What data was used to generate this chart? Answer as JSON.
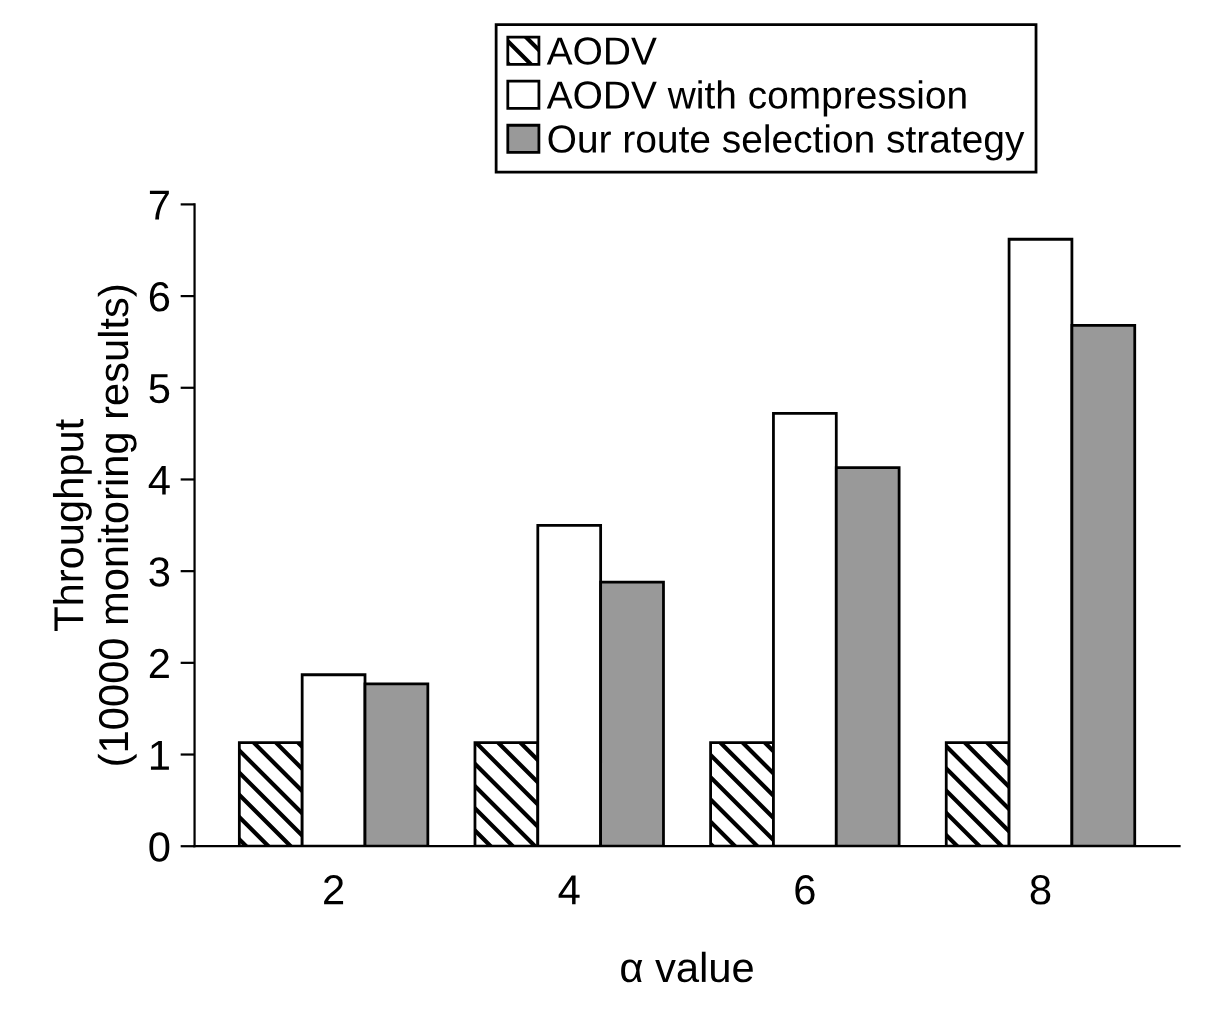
{
  "chart_data": {
    "type": "bar",
    "xlabel": "α value",
    "ylabel": "Throughput\n(10000 monitoring results)",
    "categories": [
      "2",
      "4",
      "6",
      "8"
    ],
    "series": [
      {
        "name": "AODV",
        "color": "#000000",
        "values": [
          1.13,
          1.13,
          1.13,
          1.13
        ]
      },
      {
        "name": "AODV with compression",
        "color": "#ffffff",
        "values": [
          1.87,
          3.5,
          4.72,
          6.62
        ]
      },
      {
        "name": "Our route selection strategy",
        "color": "#999999",
        "values": [
          1.77,
          2.88,
          4.13,
          5.68
        ]
      }
    ],
    "ylim": [
      0,
      7
    ],
    "yticks": [
      0,
      1,
      2,
      3,
      4,
      5,
      6,
      7
    ],
    "grid": false,
    "legend": "top"
  }
}
